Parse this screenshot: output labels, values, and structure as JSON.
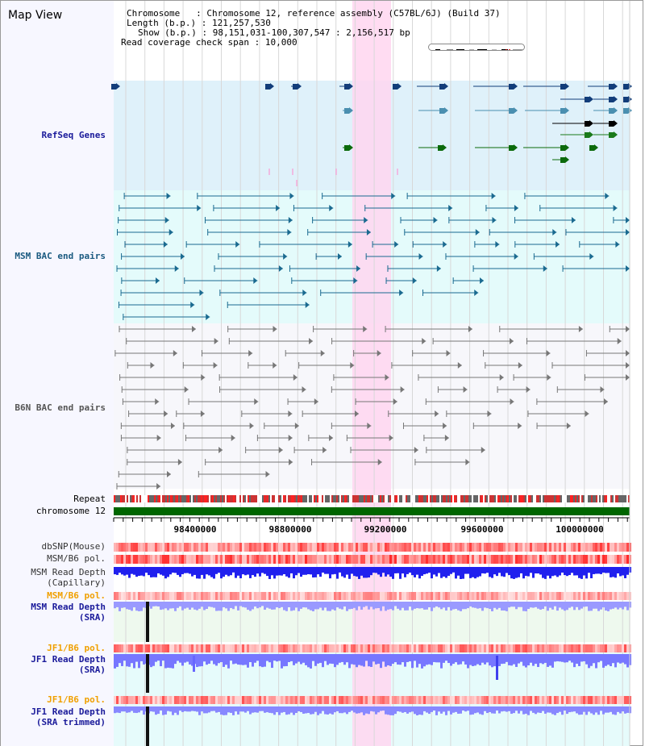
{
  "page_title": "Map View",
  "info": {
    "chromosome_key": "Chromosome",
    "chromosome_value": "Chromosome 12, reference assembly (C57BL/6J) (Build 37)",
    "length_key": "Length (b.p.)",
    "length_value": "121,257,530",
    "show_key": "Show (b.p.)",
    "show_value": "98,151,031-100,307,547 : 2,156,517 bp",
    "read_key": "Read coverage check span",
    "read_value": "10,000"
  },
  "tracks": {
    "refseq": "RefSeq Genes",
    "msm_bac": "MSM BAC end pairs",
    "b6n_bac": "B6N BAC end pairs",
    "repeat": "Repeat",
    "chromosome": "chromosome 12",
    "dbsnp": "dbSNP(Mouse)",
    "msm_b6_pol": "MSM/B6 pol.",
    "msm_depth_cap_1": "MSM Read Depth",
    "msm_depth_cap_2": "(Capillary)",
    "msm_b6_pol_2": "MSM/B6 pol.",
    "msm_depth_sra_1": "MSM Read Depth",
    "msm_depth_sra_2": "(SRA)",
    "jf1_b6_pol": "JF1/B6 pol.",
    "jf1_depth_sra_1": "JF1 Read Depth",
    "jf1_depth_sra_2": "(SRA)",
    "jf1_b6_pol_2": "JF1/B6 pol.",
    "jf1_depth_trim_1": "JF1 Read Depth",
    "jf1_depth_trim_2": "(SRA trimmed)"
  },
  "axis_ticks": [
    "98400000",
    "98800000",
    "99200000",
    "99600000",
    "100000000"
  ],
  "colors": {
    "refseq_label": "#1a1a9a",
    "msm_bac_label": "#1a5a80",
    "b6n_bac_label": "#555555",
    "orange_label": "#f0a000",
    "highlight": "#ffd6f0",
    "chromosome_bar": "#006600",
    "depth_blue": "#2020ee",
    "depth_light": "#7777ff"
  }
}
